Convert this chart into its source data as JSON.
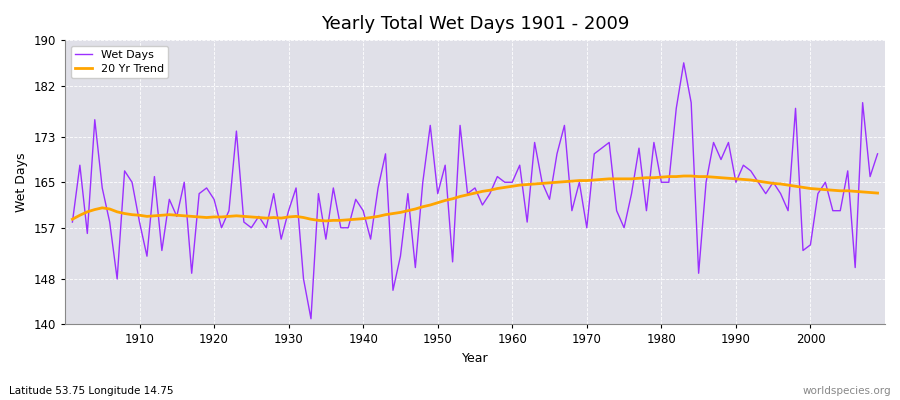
{
  "title": "Yearly Total Wet Days 1901 - 2009",
  "xlabel": "Year",
  "ylabel": "Wet Days",
  "lat_lon_label": "Latitude 53.75 Longitude 14.75",
  "watermark": "worldspecies.org",
  "wet_days_color": "#9B30FF",
  "trend_color": "#FFA500",
  "background_color": "#ffffff",
  "plot_bg_color": "#E0E0E8",
  "ylim": [
    140,
    190
  ],
  "yticks": [
    140,
    148,
    157,
    165,
    173,
    182,
    190
  ],
  "years": [
    1901,
    1902,
    1903,
    1904,
    1905,
    1906,
    1907,
    1908,
    1909,
    1910,
    1911,
    1912,
    1913,
    1914,
    1915,
    1916,
    1917,
    1918,
    1919,
    1920,
    1921,
    1922,
    1923,
    1924,
    1925,
    1926,
    1927,
    1928,
    1929,
    1930,
    1931,
    1932,
    1933,
    1934,
    1935,
    1936,
    1937,
    1938,
    1939,
    1940,
    1941,
    1942,
    1943,
    1944,
    1945,
    1946,
    1947,
    1948,
    1949,
    1950,
    1951,
    1952,
    1953,
    1954,
    1955,
    1956,
    1957,
    1958,
    1959,
    1960,
    1961,
    1962,
    1963,
    1964,
    1965,
    1966,
    1967,
    1968,
    1969,
    1970,
    1971,
    1972,
    1973,
    1974,
    1975,
    1976,
    1977,
    1978,
    1979,
    1980,
    1981,
    1982,
    1983,
    1984,
    1985,
    1986,
    1987,
    1988,
    1989,
    1990,
    1991,
    1992,
    1993,
    1994,
    1995,
    1996,
    1997,
    1998,
    1999,
    2000,
    2001,
    2002,
    2003,
    2004,
    2005,
    2006,
    2007,
    2008,
    2009
  ],
  "wet_days": [
    158,
    168,
    156,
    176,
    164,
    158,
    148,
    167,
    165,
    158,
    152,
    166,
    153,
    162,
    159,
    165,
    149,
    163,
    164,
    162,
    157,
    160,
    174,
    158,
    157,
    159,
    157,
    163,
    155,
    160,
    164,
    148,
    141,
    163,
    155,
    164,
    157,
    157,
    162,
    160,
    155,
    164,
    170,
    146,
    152,
    163,
    150,
    165,
    175,
    163,
    168,
    151,
    175,
    163,
    164,
    161,
    163,
    166,
    165,
    165,
    168,
    158,
    172,
    165,
    162,
    170,
    175,
    160,
    165,
    157,
    170,
    171,
    172,
    160,
    157,
    163,
    171,
    160,
    172,
    165,
    165,
    178,
    186,
    179,
    149,
    165,
    172,
    169,
    172,
    165,
    168,
    167,
    165,
    163,
    165,
    163,
    160,
    178,
    153,
    154,
    163,
    165,
    160,
    160,
    167,
    150,
    179,
    166,
    170
  ],
  "trend": [
    158.5,
    159.2,
    159.8,
    160.2,
    160.5,
    160.3,
    159.8,
    159.5,
    159.3,
    159.2,
    159.0,
    159.1,
    159.2,
    159.3,
    159.2,
    159.1,
    159.0,
    158.9,
    158.8,
    158.9,
    158.9,
    159.0,
    159.1,
    159.0,
    158.9,
    158.8,
    158.7,
    158.8,
    158.7,
    158.9,
    159.0,
    158.8,
    158.5,
    158.3,
    158.2,
    158.3,
    158.3,
    158.4,
    158.5,
    158.6,
    158.8,
    159.0,
    159.3,
    159.5,
    159.7,
    160.0,
    160.3,
    160.7,
    161.0,
    161.4,
    161.8,
    162.1,
    162.5,
    162.8,
    163.1,
    163.4,
    163.6,
    163.9,
    164.1,
    164.3,
    164.5,
    164.6,
    164.7,
    164.8,
    164.9,
    165.0,
    165.1,
    165.2,
    165.3,
    165.3,
    165.4,
    165.5,
    165.6,
    165.6,
    165.6,
    165.6,
    165.7,
    165.8,
    165.8,
    165.9,
    166.0,
    166.0,
    166.1,
    166.1,
    166.0,
    166.0,
    165.9,
    165.8,
    165.7,
    165.6,
    165.5,
    165.4,
    165.2,
    165.0,
    164.8,
    164.7,
    164.5,
    164.3,
    164.1,
    163.9,
    163.8,
    163.7,
    163.6,
    163.5,
    163.5,
    163.4,
    163.3,
    163.2,
    163.1
  ]
}
